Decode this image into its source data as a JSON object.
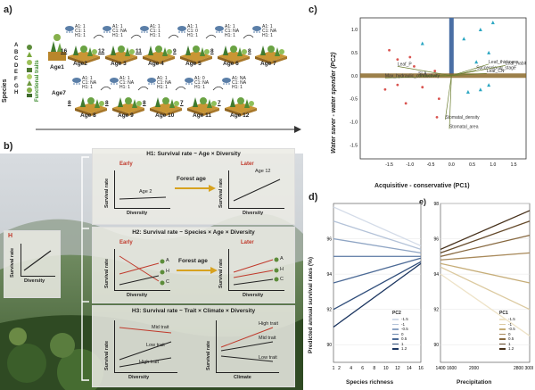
{
  "panel_a": {
    "label": "a)",
    "species_axis": "Species",
    "traits_axis": "Functional traits",
    "species_letters": [
      "A",
      "B",
      "C",
      "D",
      "E",
      "F",
      "G",
      "H"
    ],
    "age1": "Age1",
    "timeline_label": "Age 12",
    "row1": [
      {
        "age": "Age2",
        "count": "16",
        "c1": "A1: 1",
        "c2": "C1: 1",
        "c3": "H1: 1"
      },
      {
        "age": "Age 3",
        "count": "12",
        "c1": "A1: 1",
        "c2": "C1: NA",
        "c3": "H1: 1"
      },
      {
        "age": "Age 4",
        "count": "11",
        "c1": "A1: 1",
        "c2": "C1: 1",
        "c3": "H1: 1"
      },
      {
        "age": "Age 5",
        "count": "9",
        "c1": "A1: 1",
        "c2": "C1: 0",
        "c3": "H1: 1"
      },
      {
        "age": "Age 6",
        "count": "8",
        "c1": "A1: 1",
        "c2": "C1: NA",
        "c3": "H1: 1"
      },
      {
        "age": "Age 7",
        "count": "8",
        "c1": "A1: 1",
        "c2": "C1: NA",
        "c3": "H1: 1"
      }
    ],
    "row2_prefix": "Age7",
    "row2": [
      {
        "age": "Age 8",
        "count": "8",
        "c1": "A1: 1",
        "c2": "C1: NA",
        "c3": "H1: 1"
      },
      {
        "age": "Age 9",
        "count": "8",
        "c1": "A1: 1",
        "c2": "C1: NA",
        "c3": "H1: 1"
      },
      {
        "age": "Age 10",
        "count": "8",
        "c1": "A1: 1",
        "c2": "C1: NA",
        "c3": "H1: 1"
      },
      {
        "age": "Age 11",
        "count": "7",
        "c1": "A1: 0",
        "c2": "C1: NA",
        "c3": "H1: 1"
      },
      {
        "age": "Age 12",
        "count": "7",
        "c1": "A1: NA",
        "c2": "C1: NA",
        "c3": "H1: 1"
      }
    ]
  },
  "panel_b": {
    "label": "b)",
    "left_box": {
      "letter": "H",
      "ylabel": "Survival rate",
      "xlabel": "Diversity"
    },
    "h1": {
      "title": "H1: Survival rate ~ Age × Diversity",
      "early": "Early",
      "later": "Later",
      "arrow": "Forest age",
      "left_line": "Age 2",
      "right_line": "Age 12",
      "ylabel": "Survival rate",
      "xlabel": "Diversity"
    },
    "h2": {
      "title": "H2: Survival rate ~ Species × Age × Diversity",
      "early": "Early",
      "later": "Later",
      "arrow": "Forest age",
      "labels": [
        "A",
        "H",
        "C"
      ],
      "ylabel": "Survival rate",
      "xlabel": "Diversity"
    },
    "h3": {
      "title": "H3: Survival rate ~ Trait × Climate × Diversity",
      "left_labels": [
        "Mid trait",
        "Low trait",
        "High trait"
      ],
      "right_labels": [
        "High trait",
        "Mid trait",
        "Low trait"
      ],
      "ylabel": "Survival rate",
      "xlabel_left": "Diversity",
      "xlabel_right": "Climate"
    }
  },
  "panel_c": {
    "label": "c)",
    "xlabel": "Acquisitive - conservative (PC1)",
    "ylabel": "Water saver - water spender (PC2)",
    "xticks": [
      "-1.5",
      "-1.0",
      "-0.5",
      "0.0",
      "0.5",
      "1.0",
      "1.5"
    ],
    "yticks": [
      "1.0",
      "0.5",
      "0.0",
      "-0.5",
      "-1.0",
      "-1.5"
    ],
    "vectors": [
      {
        "name": "Leaf_P",
        "x": -1.3,
        "y": 0.2
      },
      {
        "name": "SLA",
        "x": -0.8,
        "y": 0.0
      },
      {
        "name": "Max_hydraulic_conductivity",
        "x": -1.6,
        "y": -0.05
      },
      {
        "name": "Successional_stage",
        "x": 0.6,
        "y": 0.12
      },
      {
        "name": "Leaf_thickness",
        "x": 0.9,
        "y": 0.25
      },
      {
        "name": "Leaf_habit",
        "x": 1.3,
        "y": 0.22
      },
      {
        "name": "Leaf_CN",
        "x": 0.85,
        "y": 0.05
      },
      {
        "name": "Stomatal_density",
        "x": -0.15,
        "y": -0.95
      },
      {
        "name": "Stomatal_area",
        "x": -0.05,
        "y": -1.15
      }
    ]
  },
  "panel_d": {
    "label": "d)",
    "ylabel": "Predicted annual survival rates (%)",
    "left": {
      "xlabel": "Species richness",
      "xticks": [
        "1",
        "2",
        "4",
        "6",
        "8",
        "10",
        "12",
        "14",
        "16"
      ],
      "yticks": [
        "96",
        "94",
        "92",
        "90"
      ],
      "legend_title": "PC2",
      "legend": [
        "-1.5",
        "-1",
        "-0.5",
        "0",
        "0.5",
        "1",
        "1.2"
      ]
    },
    "right": {
      "label": "e)",
      "xlabel": "Precipitation",
      "xticks": [
        "1400",
        "1600",
        "2000",
        "2800",
        "3000"
      ],
      "yticks": [
        "98",
        "96",
        "94",
        "92",
        "90"
      ],
      "legend_title": "PC1",
      "legend": [
        "-1.5",
        "-1",
        "-0.5",
        "0",
        "0.5",
        "1",
        "1.2"
      ]
    }
  },
  "chart_data": [
    {
      "type": "line",
      "title": "",
      "xlabel": "Species richness",
      "ylabel": "Predicted annual survival rates (%)",
      "x": [
        1,
        16
      ],
      "xlim": [
        1,
        16
      ],
      "ylim": [
        89,
        98
      ],
      "series": [
        {
          "name": "-1.5",
          "values": [
            97.8,
            95.6
          ]
        },
        {
          "name": "-1",
          "values": [
            97.0,
            95.4
          ]
        },
        {
          "name": "-0.5",
          "values": [
            96.0,
            95.2
          ]
        },
        {
          "name": "0",
          "values": [
            95.0,
            95.0
          ]
        },
        {
          "name": "0.5",
          "values": [
            93.5,
            94.9
          ]
        },
        {
          "name": "1",
          "values": [
            92.0,
            94.7
          ]
        },
        {
          "name": "1.2",
          "values": [
            91.0,
            94.6
          ]
        }
      ]
    },
    {
      "type": "line",
      "title": "",
      "xlabel": "Precipitation",
      "ylabel": "",
      "x": [
        1400,
        3000
      ],
      "xlim": [
        1400,
        3000
      ],
      "ylim": [
        89,
        98
      ],
      "series": [
        {
          "name": "-1.5",
          "values": [
            94.0,
            90.5
          ]
        },
        {
          "name": "-1",
          "values": [
            94.4,
            92.0
          ]
        },
        {
          "name": "-0.5",
          "values": [
            94.6,
            93.5
          ]
        },
        {
          "name": "0",
          "values": [
            94.8,
            95.2
          ]
        },
        {
          "name": "0.5",
          "values": [
            95.0,
            96.2
          ]
        },
        {
          "name": "1",
          "values": [
            95.2,
            97.0
          ]
        },
        {
          "name": "1.2",
          "values": [
            95.4,
            97.6
          ]
        }
      ]
    }
  ]
}
